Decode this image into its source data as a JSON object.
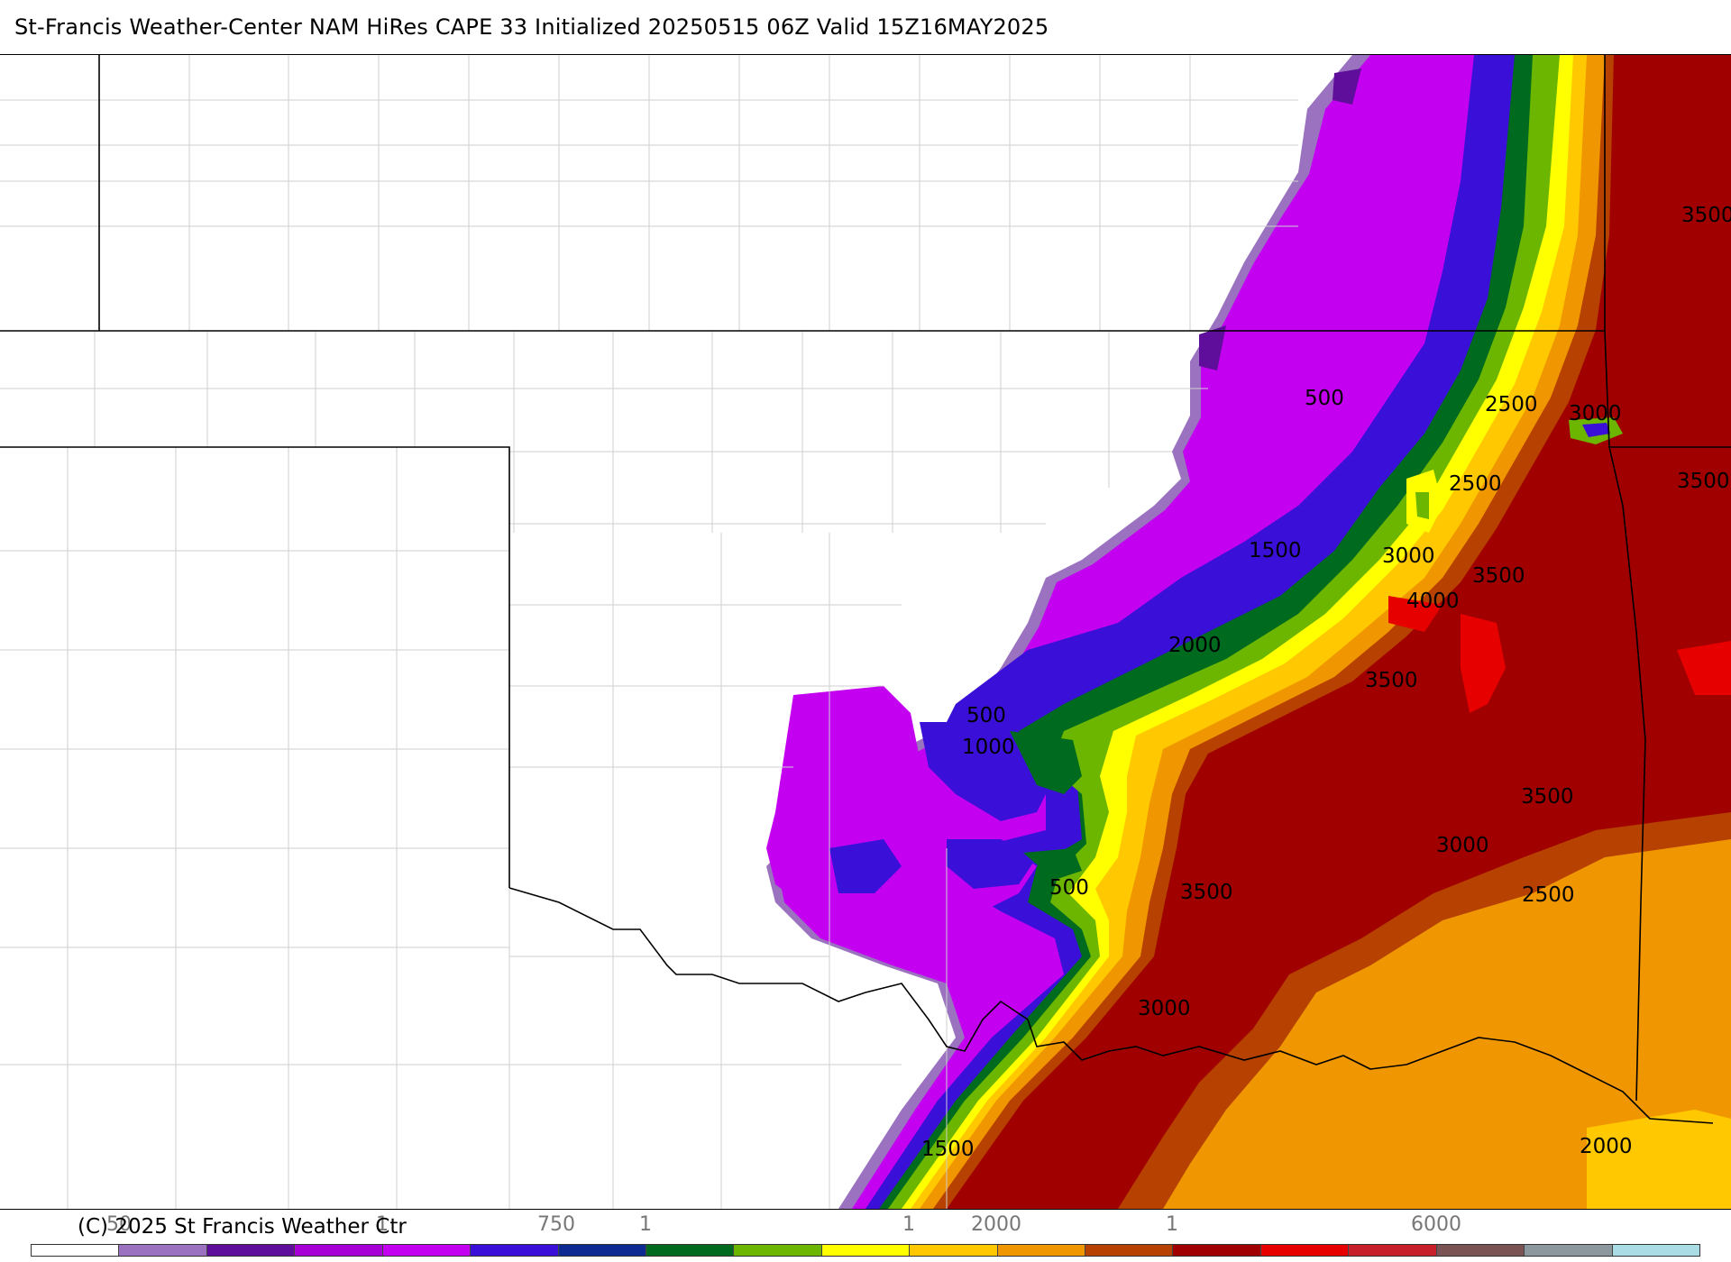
{
  "header": {
    "title": "St-Francis Weather-Center NAM HiRes CAPE  33 Initialized 20250515 06Z Valid 15Z16MAY2025"
  },
  "map": {
    "contour_labels": [
      {
        "text": "3500"
      },
      {
        "text": "3500"
      },
      {
        "text": "3000"
      },
      {
        "text": "500"
      },
      {
        "text": "2500"
      },
      {
        "text": "2500"
      },
      {
        "text": "1500"
      },
      {
        "text": "3000"
      },
      {
        "text": "3500"
      },
      {
        "text": "4000"
      },
      {
        "text": "2000"
      },
      {
        "text": "3500"
      },
      {
        "text": "500"
      },
      {
        "text": "1000"
      },
      {
        "text": "3500"
      },
      {
        "text": "3000"
      },
      {
        "text": "500"
      },
      {
        "text": "3500"
      },
      {
        "text": "2500"
      },
      {
        "text": "3000"
      },
      {
        "text": "2000"
      },
      {
        "text": "1500"
      }
    ]
  },
  "footer": {
    "copyright": "(C) 2025 St Francis Weather Ctr",
    "ticks": [
      "50",
      "1",
      "750",
      "1",
      "1",
      "2000",
      "1",
      "6000"
    ]
  },
  "colorbar": {
    "colors": [
      "#ffffff",
      "#9a72c0",
      "#5e0e9a",
      "#a600d6",
      "#c300f0",
      "#3a10d8",
      "#0c2a92",
      "#006a1e",
      "#6cb600",
      "#ffff00",
      "#ffc800",
      "#f09600",
      "#b64100",
      "#a00000",
      "#e60000",
      "#c8202a",
      "#7a5454",
      "#8c989e",
      "#aadce6"
    ]
  }
}
